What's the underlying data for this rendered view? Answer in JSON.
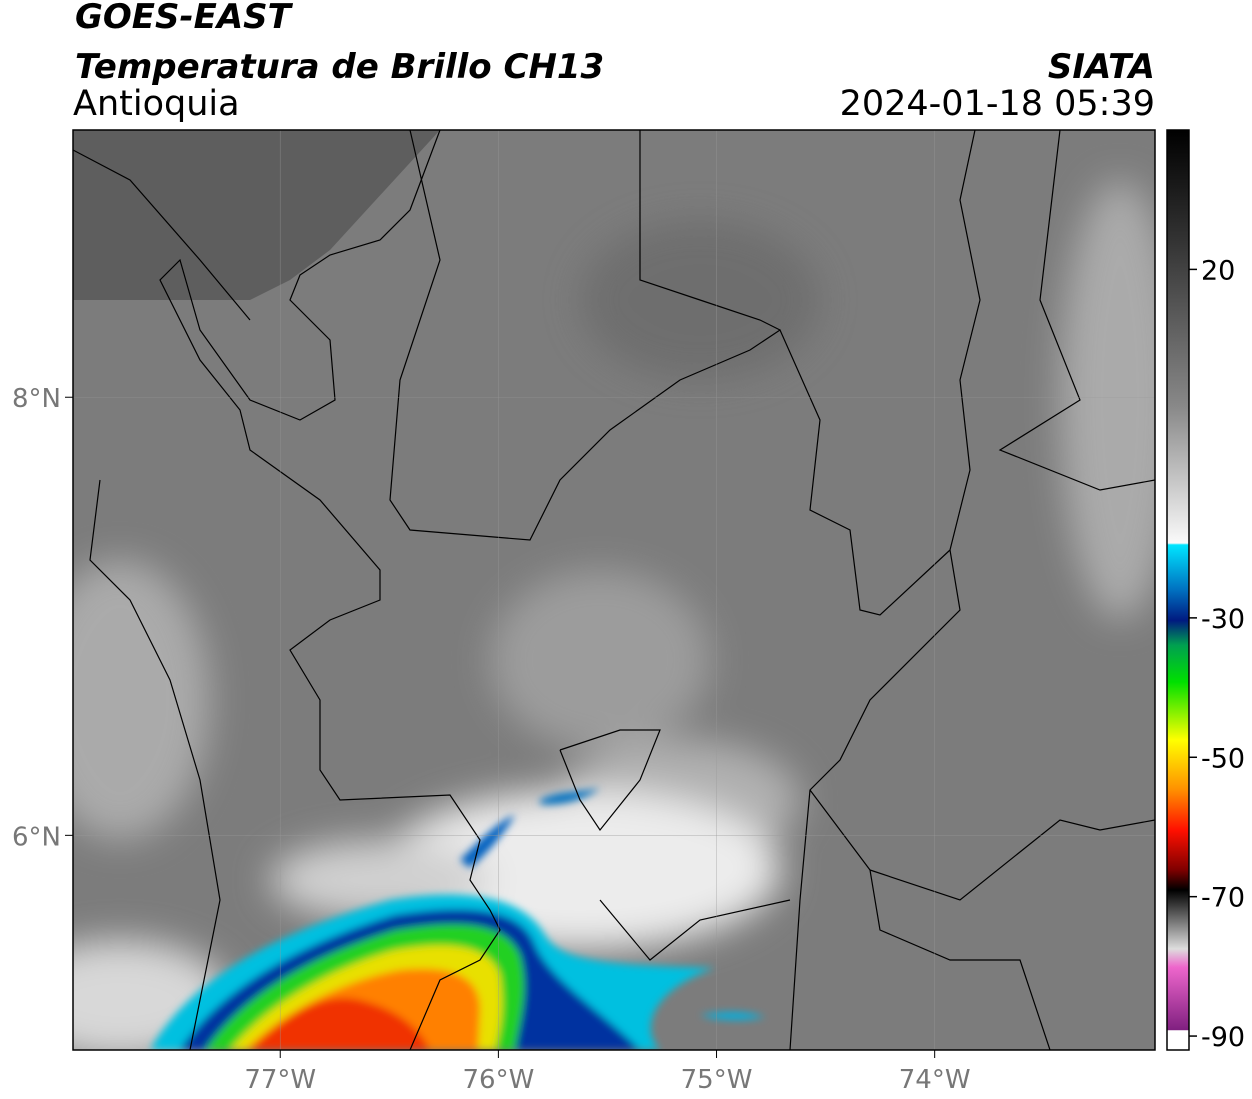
{
  "header": {
    "satellite": "GOES-EAST",
    "product": "Temperatura de Brillo CH13",
    "region": "Antioquia",
    "source": "SIATA",
    "datetime": "2024-01-18 05:39"
  },
  "map": {
    "xlim": [
      -77.95,
      -72.99
    ],
    "ylim": [
      5.02,
      9.22
    ],
    "xticks": [
      {
        "value": -77,
        "label": "77°W"
      },
      {
        "value": -76,
        "label": "76°W"
      },
      {
        "value": -75,
        "label": "75°W"
      },
      {
        "value": -74,
        "label": "74°W"
      }
    ],
    "yticks": [
      {
        "value": 6,
        "label": "6°N"
      },
      {
        "value": 8,
        "label": "8°N"
      }
    ],
    "grid": true
  },
  "colorbar": {
    "lim": [
      -92,
      40
    ],
    "ticks": [
      20,
      -30,
      -50,
      -70,
      -90
    ]
  }
}
